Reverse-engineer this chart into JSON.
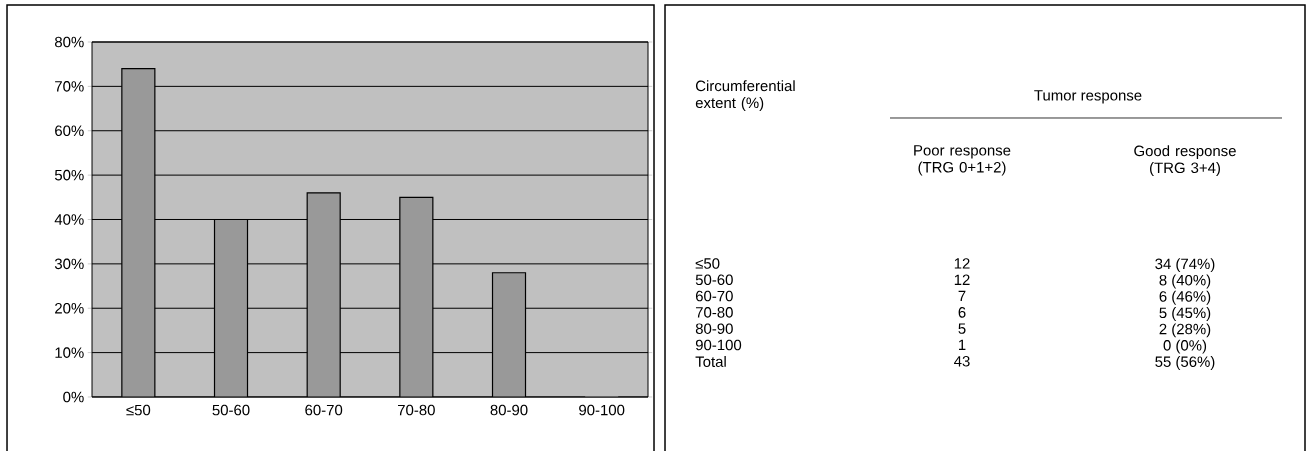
{
  "chart_data": [
    {
      "type": "bar",
      "categories": [
        "≤50",
        "50-60",
        "60-70",
        "70-80",
        "80-90",
        "90-100"
      ],
      "values": [
        74,
        40,
        46,
        45,
        28,
        0
      ],
      "color": "#999999",
      "ylim": [
        0,
        80
      ],
      "yticks": [
        {
          "value": 0,
          "label": "0%"
        },
        {
          "value": 10,
          "label": "10%"
        },
        {
          "value": 20,
          "label": "20%"
        },
        {
          "value": 30,
          "label": "30%"
        },
        {
          "value": 40,
          "label": "40%"
        },
        {
          "value": 50,
          "label": "50%"
        },
        {
          "value": 60,
          "label": "60%"
        },
        {
          "value": 70,
          "label": "70%"
        },
        {
          "value": 80,
          "label": "80%"
        }
      ],
      "grid": "y"
    },
    {
      "type": "other",
      "annotations": [
        "Circumferential extent (%)",
        "Tumor response",
        "Poor response (TRG 0+1+2)",
        "Good response (TRG 3+4)",
        "≤50",
        "12",
        "34 (74%)",
        "50-60",
        "12",
        "8 (40%)",
        "60-70",
        "7",
        "6 (46%)",
        "70-80",
        "6",
        "5 (45%)",
        "80-90",
        "5",
        "2 (28%)",
        "90-100",
        "1",
        "0 (0%)",
        "Total",
        "43",
        "55 (56%)"
      ]
    }
  ]
}
